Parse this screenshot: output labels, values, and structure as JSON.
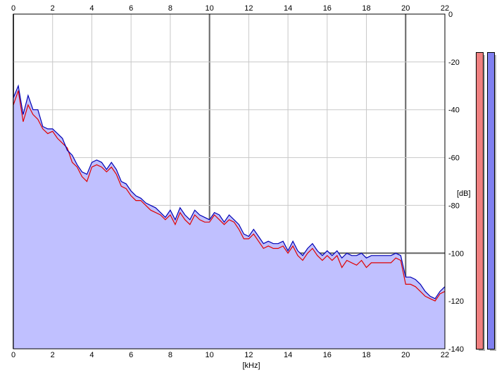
{
  "chart_data": {
    "type": "area",
    "xlabel": "[kHz]",
    "ylabel": "[dB]",
    "xlim": [
      0,
      22
    ],
    "ylim": [
      -140,
      0
    ],
    "x_ticks": [
      "0",
      "2",
      "4",
      "6",
      "8",
      "10",
      "12",
      "14",
      "16",
      "18",
      "20",
      "22"
    ],
    "y_ticks": [
      "0",
      "-20",
      "-40",
      "-60",
      "-80",
      "-100",
      "-120",
      "-140"
    ],
    "grid": true,
    "x": [
      0.0,
      0.25,
      0.5,
      0.75,
      1.0,
      1.25,
      1.5,
      1.75,
      2.0,
      2.25,
      2.5,
      2.75,
      3.0,
      3.25,
      3.5,
      3.75,
      4.0,
      4.25,
      4.5,
      4.75,
      5.0,
      5.25,
      5.5,
      5.75,
      6.0,
      6.25,
      6.5,
      6.75,
      7.0,
      7.25,
      7.5,
      7.75,
      8.0,
      8.25,
      8.5,
      8.75,
      9.0,
      9.25,
      9.5,
      9.75,
      10.0,
      10.25,
      10.5,
      10.75,
      11.0,
      11.25,
      11.5,
      11.75,
      12.0,
      12.25,
      12.5,
      12.75,
      13.0,
      13.25,
      13.5,
      13.75,
      14.0,
      14.25,
      14.5,
      14.75,
      15.0,
      15.25,
      15.5,
      15.75,
      16.0,
      16.25,
      16.5,
      16.75,
      17.0,
      17.25,
      17.5,
      17.75,
      18.0,
      18.25,
      18.5,
      18.75,
      19.0,
      19.25,
      19.5,
      19.75,
      20.0,
      20.25,
      20.5,
      20.75,
      21.0,
      21.25,
      21.5,
      21.75,
      22.0
    ],
    "series": [
      {
        "color": "#e00000",
        "values": [
          -38,
          -32,
          -45,
          -38,
          -42,
          -44,
          -48,
          -50,
          -49,
          -52,
          -54,
          -56,
          -62,
          -64,
          -68,
          -70,
          -64,
          -63,
          -64,
          -66,
          -64,
          -67,
          -72,
          -73,
          -76,
          -78,
          -78,
          -80,
          -82,
          -83,
          -84,
          -86,
          -84,
          -88,
          -83,
          -86,
          -88,
          -84,
          -86,
          -87,
          -87,
          -84,
          -86,
          -88,
          -86,
          -87,
          -90,
          -94,
          -94,
          -92,
          -95,
          -98,
          -97,
          -98,
          -98,
          -97,
          -100,
          -97,
          -101,
          -103,
          -100,
          -98,
          -101,
          -103,
          -101,
          -103,
          -101,
          -106,
          -103,
          -104,
          -105,
          -103,
          -106,
          -104,
          -104,
          -104,
          -104,
          -104,
          -102,
          -103,
          -113,
          -113,
          -114,
          -116,
          -118,
          -119,
          -120,
          -117,
          -116
        ]
      },
      {
        "color": "#0000b4",
        "values": [
          -35,
          -30,
          -42,
          -34,
          -40,
          -40,
          -47,
          -48,
          -48,
          -50,
          -52,
          -57,
          -59,
          -63,
          -66,
          -67,
          -62,
          -61,
          -62,
          -65,
          -62,
          -65,
          -70,
          -71,
          -74,
          -76,
          -77,
          -79,
          -80,
          -81,
          -83,
          -85,
          -82,
          -86,
          -81,
          -84,
          -86,
          -82,
          -84,
          -85,
          -86,
          -83,
          -84,
          -87,
          -84,
          -86,
          -88,
          -92,
          -93,
          -90,
          -93,
          -96,
          -95,
          -96,
          -96,
          -95,
          -99,
          -95,
          -99,
          -101,
          -98,
          -96,
          -99,
          -101,
          -99,
          -101,
          -99,
          -102,
          -100,
          -101,
          -101,
          -100,
          -102,
          -101,
          -101,
          -101,
          -101,
          -101,
          -100,
          -101,
          -110,
          -110,
          -111,
          -113,
          -116,
          -118,
          -119,
          -116,
          -114
        ]
      }
    ]
  },
  "meters": [
    {
      "color": "#f08080"
    },
    {
      "color": "#8080f0"
    }
  ],
  "colors": {
    "fill": "#c0c0ff",
    "grid_light": "#c8c8c8",
    "grid_dark": "#646464"
  }
}
